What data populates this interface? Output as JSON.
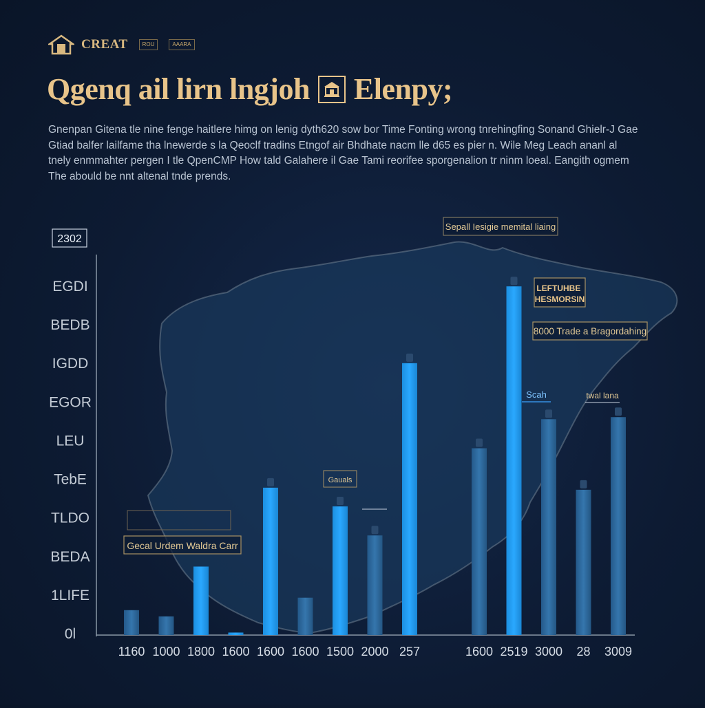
{
  "brand": {
    "logo_text": "CREAT",
    "badges": [
      "ROU",
      "AAARA"
    ],
    "colors": {
      "accent": "#e8c48a",
      "background": "#0d1b33",
      "bar_bright": "#1e9bf0",
      "bar_dim": "#2f6da3"
    }
  },
  "header": {
    "title_left": "Qgenq ail lirn lngjoh",
    "title_right": "Elenpy;",
    "icon": "building-icon"
  },
  "description": "Gnenpan Gitena tle nine fenge haitlere himg on lenig dyth620 sow bor Time Fonting wrong tnrehingfing Sonand Ghielr-J Gae Gtiad balfer lailfame tha lnewerde s la Qeoclf tradins Etngof air Bhdhate nacm lle d65 es pier n. Wile Meg Leach ananl al tnely enmmahter pergen I tle QpenCMP How tald Galahere il Gae Tami reorifee sporgenalion tr ninm loeal. Eangith ogmem The abould be nnt altenal tnde prends.",
  "chart_data": {
    "type": "bar",
    "title": "",
    "xlabel": "",
    "ylabel": "",
    "year_label": "2302",
    "ylim": [
      0,
      9000
    ],
    "yticks": [
      "0l",
      "1LIFE",
      "BEDA",
      "TLDO",
      "TebE",
      "LEU",
      "EGOR",
      "IGDD",
      "BEDB",
      "EGDI"
    ],
    "categories": [
      "1160",
      "1000",
      "1800",
      "1600",
      "1600",
      "1600",
      "1500",
      "2000",
      "257",
      "",
      "1600",
      "2519",
      "3000",
      "28",
      "3009"
    ],
    "values": [
      600,
      450,
      1650,
      60,
      3550,
      900,
      3100,
      2400,
      6550,
      0,
      4500,
      8400,
      5200,
      3500,
      5250
    ],
    "highlight": [
      false,
      false,
      true,
      true,
      true,
      false,
      true,
      false,
      true,
      false,
      false,
      true,
      false,
      false,
      false
    ],
    "grid": false,
    "annotations": [
      "Gecal Urdem Waldra Carr",
      "Gauals",
      "Sepall Iesigie memital liaing",
      "LEFTUHBE HESMORSIN",
      "8000 Trade a Bragordahing",
      "Scah",
      "twal lana"
    ]
  }
}
